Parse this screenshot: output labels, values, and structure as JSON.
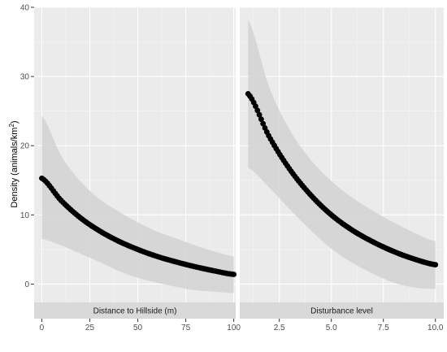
{
  "chart_data": {
    "type": "line",
    "ylabel_main": "Density (animals/km",
    "ylabel_sup": "2",
    "ylabel_close": ")",
    "ylim": [
      -5,
      40
    ],
    "y_ticks": [
      0,
      10,
      20,
      30,
      40
    ],
    "y_tick_labels": [
      "0",
      "10",
      "20",
      "30",
      "40"
    ],
    "grid": true,
    "colors": {
      "panel_bg": "#ebebeb",
      "grid_major": "#ffffff",
      "ribbon": "#d2d2d2",
      "line": "#000000",
      "strip_bg": "#d9d9d9"
    },
    "panels": [
      {
        "strip_label": "Distance to Hillside (m)",
        "xlim": [
          -4,
          101
        ],
        "x_ticks": [
          0,
          25,
          50,
          75,
          100
        ],
        "x_tick_labels": [
          "0",
          "25",
          "50",
          "75",
          "100"
        ],
        "x": [
          0,
          10,
          20,
          30,
          40,
          50,
          60,
          70,
          80,
          90,
          100
        ],
        "y": [
          15.3,
          12.1,
          9.6,
          7.7,
          6.2,
          5.0,
          4.0,
          3.2,
          2.5,
          1.9,
          1.4
        ],
        "lower": [
          6.5,
          5.6,
          4.4,
          3.2,
          1.9,
          0.9,
          0.2,
          -0.4,
          -0.9,
          -1.1,
          -1.3
        ],
        "upper": [
          24.3,
          18.6,
          14.9,
          12.3,
          10.5,
          8.9,
          7.6,
          6.6,
          5.6,
          4.7,
          4.0
        ]
      },
      {
        "strip_label": "Disturbance level",
        "xlim": [
          0.6,
          10.4
        ],
        "x_ticks": [
          2.5,
          5.0,
          7.5,
          10.0
        ],
        "x_tick_labels": [
          "2.5",
          "5.0",
          "7.5",
          "10.0"
        ],
        "x": [
          1,
          2,
          3,
          4,
          5,
          6,
          7,
          8,
          9,
          10
        ],
        "y": [
          27.5,
          21.4,
          16.6,
          12.9,
          10.0,
          7.8,
          6.1,
          4.7,
          3.6,
          2.8
        ],
        "lower": [
          16.8,
          14.0,
          10.8,
          7.8,
          5.1,
          3.1,
          1.5,
          0.2,
          -0.5,
          -0.7
        ],
        "upper": [
          38.2,
          28.6,
          22.3,
          18.0,
          14.9,
          12.5,
          10.6,
          8.9,
          7.4,
          6.2
        ]
      }
    ]
  }
}
